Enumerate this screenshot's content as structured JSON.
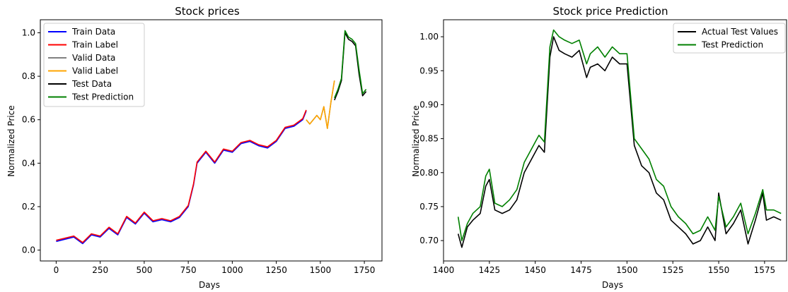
{
  "chart_data": [
    {
      "type": "line",
      "title": "Stock prices",
      "xlabel": "Days",
      "ylabel": "Normalized Price",
      "xlim": [
        -90,
        1850
      ],
      "ylim": [
        -0.05,
        1.06
      ],
      "xticks": [
        0,
        250,
        500,
        750,
        1000,
        1250,
        1500,
        1750
      ],
      "yticks": [
        0.0,
        0.2,
        0.4,
        0.6,
        0.8,
        1.0
      ],
      "legend_position": "top-left",
      "series": [
        {
          "name": "Train Data",
          "color": "#0000ff",
          "x": [
            0,
            50,
            100,
            150,
            200,
            250,
            300,
            350,
            400,
            450,
            500,
            550,
            600,
            650,
            700,
            750,
            780,
            800,
            850,
            900,
            950,
            1000,
            1050,
            1100,
            1150,
            1200,
            1250,
            1300,
            1350,
            1400,
            1420
          ],
          "y": [
            0.04,
            0.05,
            0.06,
            0.03,
            0.07,
            0.06,
            0.1,
            0.07,
            0.15,
            0.12,
            0.17,
            0.13,
            0.14,
            0.13,
            0.15,
            0.2,
            0.3,
            0.4,
            0.45,
            0.4,
            0.46,
            0.45,
            0.49,
            0.5,
            0.48,
            0.47,
            0.5,
            0.56,
            0.57,
            0.6,
            0.64
          ]
        },
        {
          "name": "Train Label",
          "color": "#ff0000",
          "x": [
            0,
            50,
            100,
            150,
            200,
            250,
            300,
            350,
            400,
            450,
            500,
            550,
            600,
            650,
            700,
            750,
            780,
            800,
            850,
            900,
            950,
            1000,
            1050,
            1100,
            1150,
            1200,
            1250,
            1300,
            1350,
            1400,
            1420
          ],
          "y": [
            0.045,
            0.055,
            0.065,
            0.035,
            0.075,
            0.065,
            0.105,
            0.075,
            0.155,
            0.125,
            0.175,
            0.135,
            0.145,
            0.135,
            0.155,
            0.205,
            0.305,
            0.405,
            0.455,
            0.405,
            0.465,
            0.455,
            0.495,
            0.505,
            0.485,
            0.475,
            0.505,
            0.565,
            0.575,
            0.605,
            0.645
          ]
        },
        {
          "name": "Valid Data",
          "color": "#808080",
          "x": [
            1420,
            1440,
            1460,
            1480,
            1500,
            1520,
            1540,
            1560,
            1580
          ],
          "y": [
            0.6,
            0.58,
            0.6,
            0.62,
            0.6,
            0.66,
            0.56,
            0.68,
            0.78
          ]
        },
        {
          "name": "Valid Label",
          "color": "#ffa500",
          "x": [
            1420,
            1440,
            1460,
            1480,
            1500,
            1520,
            1540,
            1560,
            1580
          ],
          "y": [
            0.6,
            0.58,
            0.6,
            0.62,
            0.6,
            0.66,
            0.56,
            0.68,
            0.78
          ]
        },
        {
          "name": "Test Data",
          "color": "#000000",
          "x": [
            1580,
            1600,
            1620,
            1640,
            1660,
            1680,
            1700,
            1720,
            1740,
            1760
          ],
          "y": [
            0.69,
            0.73,
            0.78,
            1.0,
            0.97,
            0.96,
            0.94,
            0.81,
            0.71,
            0.73
          ]
        },
        {
          "name": "Test Prediction",
          "color": "#008000",
          "x": [
            1580,
            1600,
            1620,
            1640,
            1660,
            1680,
            1700,
            1720,
            1740,
            1760
          ],
          "y": [
            0.7,
            0.74,
            0.79,
            1.01,
            0.98,
            0.97,
            0.95,
            0.83,
            0.72,
            0.74
          ]
        }
      ]
    },
    {
      "type": "line",
      "title": "Stock price Prediction",
      "xlabel": "Days",
      "ylabel": "Normalized Price",
      "xlim": [
        1400,
        1587
      ],
      "ylim": [
        0.67,
        1.025
      ],
      "xticks": [
        1400,
        1425,
        1450,
        1475,
        1500,
        1525,
        1550,
        1575
      ],
      "yticks": [
        0.7,
        0.75,
        0.8,
        0.85,
        0.9,
        0.95,
        1.0
      ],
      "legend_position": "top-right",
      "series": [
        {
          "name": "Actual Test Values",
          "color": "#000000",
          "x": [
            1408,
            1410,
            1413,
            1416,
            1420,
            1423,
            1425,
            1428,
            1432,
            1436,
            1440,
            1444,
            1448,
            1452,
            1455,
            1458,
            1460,
            1463,
            1466,
            1470,
            1474,
            1478,
            1480,
            1484,
            1488,
            1492,
            1496,
            1500,
            1504,
            1508,
            1512,
            1516,
            1520,
            1524,
            1528,
            1532,
            1536,
            1540,
            1544,
            1548,
            1550,
            1554,
            1558,
            1562,
            1566,
            1570,
            1574,
            1576,
            1580,
            1584
          ],
          "y": [
            0.71,
            0.69,
            0.72,
            0.73,
            0.74,
            0.78,
            0.79,
            0.745,
            0.74,
            0.745,
            0.76,
            0.8,
            0.82,
            0.84,
            0.83,
            0.97,
            1.0,
            0.98,
            0.975,
            0.97,
            0.98,
            0.94,
            0.955,
            0.96,
            0.95,
            0.97,
            0.96,
            0.96,
            0.84,
            0.81,
            0.8,
            0.77,
            0.76,
            0.73,
            0.72,
            0.71,
            0.695,
            0.7,
            0.72,
            0.7,
            0.77,
            0.71,
            0.725,
            0.745,
            0.695,
            0.73,
            0.77,
            0.73,
            0.735,
            0.73
          ]
        },
        {
          "name": "Test Prediction",
          "color": "#008000",
          "x": [
            1408,
            1410,
            1413,
            1416,
            1420,
            1423,
            1425,
            1428,
            1432,
            1436,
            1440,
            1444,
            1448,
            1452,
            1455,
            1458,
            1460,
            1463,
            1466,
            1470,
            1474,
            1478,
            1480,
            1484,
            1488,
            1492,
            1496,
            1500,
            1504,
            1508,
            1512,
            1516,
            1520,
            1524,
            1528,
            1532,
            1536,
            1540,
            1544,
            1548,
            1550,
            1554,
            1558,
            1562,
            1566,
            1570,
            1574,
            1576,
            1580,
            1584
          ],
          "y": [
            0.735,
            0.7,
            0.725,
            0.74,
            0.75,
            0.795,
            0.805,
            0.755,
            0.75,
            0.76,
            0.775,
            0.815,
            0.835,
            0.855,
            0.845,
            0.985,
            1.01,
            1.0,
            0.995,
            0.99,
            0.995,
            0.96,
            0.975,
            0.985,
            0.97,
            0.985,
            0.975,
            0.975,
            0.85,
            0.835,
            0.82,
            0.79,
            0.78,
            0.75,
            0.735,
            0.725,
            0.71,
            0.715,
            0.735,
            0.715,
            0.765,
            0.72,
            0.735,
            0.755,
            0.71,
            0.74,
            0.775,
            0.745,
            0.745,
            0.74
          ]
        }
      ]
    }
  ]
}
